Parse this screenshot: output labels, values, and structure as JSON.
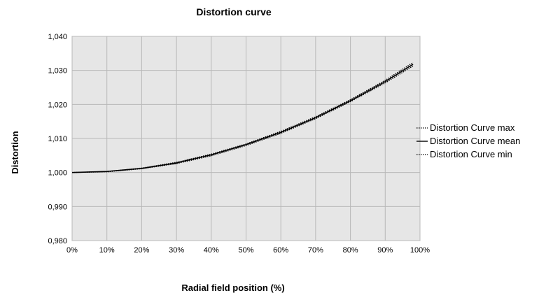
{
  "chart_data": {
    "type": "line",
    "title": "Distortion curve",
    "xlabel": "Radial field position (%)",
    "ylabel": "Distortion",
    "xlim": [
      0,
      100
    ],
    "ylim": [
      0.98,
      1.04
    ],
    "x_ticks": [
      "0%",
      "10%",
      "20%",
      "30%",
      "40%",
      "50%",
      "60%",
      "70%",
      "80%",
      "90%",
      "100%"
    ],
    "y_ticks": [
      "0,980",
      "0,990",
      "1,000",
      "1,010",
      "1,020",
      "1,030",
      "1,040"
    ],
    "grid": true,
    "legend_position": "right",
    "plot_background": "#e6e6e6",
    "x": [
      0,
      10,
      20,
      30,
      40,
      50,
      60,
      70,
      80,
      90,
      98
    ],
    "series": [
      {
        "name": "Distortion Curve max",
        "style": "dotted",
        "values": [
          1.0,
          1.0003,
          1.0013,
          1.003,
          1.0054,
          1.0084,
          1.0121,
          1.0164,
          1.0214,
          1.0271,
          1.0323
        ]
      },
      {
        "name": "Distortion Curve mean",
        "style": "solid",
        "values": [
          1.0,
          1.0003,
          1.0012,
          1.0028,
          1.0052,
          1.0082,
          1.0118,
          1.0161,
          1.0211,
          1.0267,
          1.0318
        ]
      },
      {
        "name": "Distortion Curve min",
        "style": "dotted",
        "values": [
          1.0,
          1.0002,
          1.0011,
          1.0026,
          1.0049,
          1.0079,
          1.0115,
          1.0158,
          1.0208,
          1.0263,
          1.0313
        ]
      }
    ]
  }
}
